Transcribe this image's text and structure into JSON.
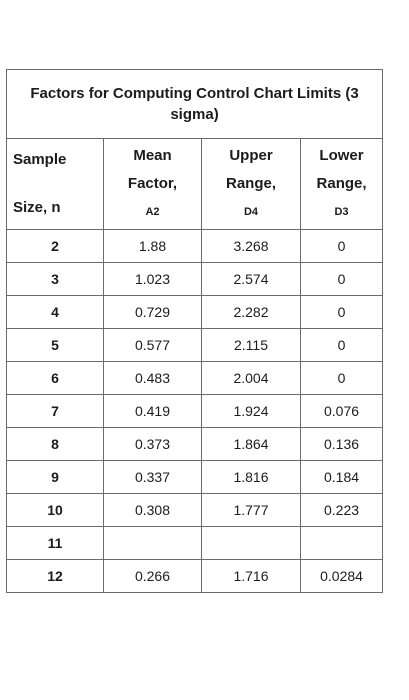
{
  "table": {
    "title": "Factors for Computing Control Chart Limits (3 sigma)",
    "headers": {
      "sample": [
        "Sample",
        "Size, n"
      ],
      "mean": [
        "Mean",
        "Factor,",
        "A2"
      ],
      "upper": [
        "Upper",
        "Range,",
        "D4"
      ],
      "lower": [
        "Lower",
        "Range,",
        "D3"
      ]
    },
    "rows": [
      {
        "n": "2",
        "a2": "1.88",
        "d4": "3.268",
        "d3": "0"
      },
      {
        "n": "3",
        "a2": "1.023",
        "d4": "2.574",
        "d3": "0"
      },
      {
        "n": "4",
        "a2": "0.729",
        "d4": "2.282",
        "d3": "0"
      },
      {
        "n": "5",
        "a2": "0.577",
        "d4": "2.115",
        "d3": "0"
      },
      {
        "n": "6",
        "a2": "0.483",
        "d4": "2.004",
        "d3": "0"
      },
      {
        "n": "7",
        "a2": "0.419",
        "d4": "1.924",
        "d3": "0.076"
      },
      {
        "n": "8",
        "a2": "0.373",
        "d4": "1.864",
        "d3": "0.136"
      },
      {
        "n": "9",
        "a2": "0.337",
        "d4": "1.816",
        "d3": "0.184"
      },
      {
        "n": "10",
        "a2": "0.308",
        "d4": "1.777",
        "d3": "0.223"
      },
      {
        "n": "11",
        "a2": "",
        "d4": "",
        "d3": ""
      },
      {
        "n": "12",
        "a2": "0.266",
        "d4": "1.716",
        "d3": "0.0284"
      }
    ]
  }
}
